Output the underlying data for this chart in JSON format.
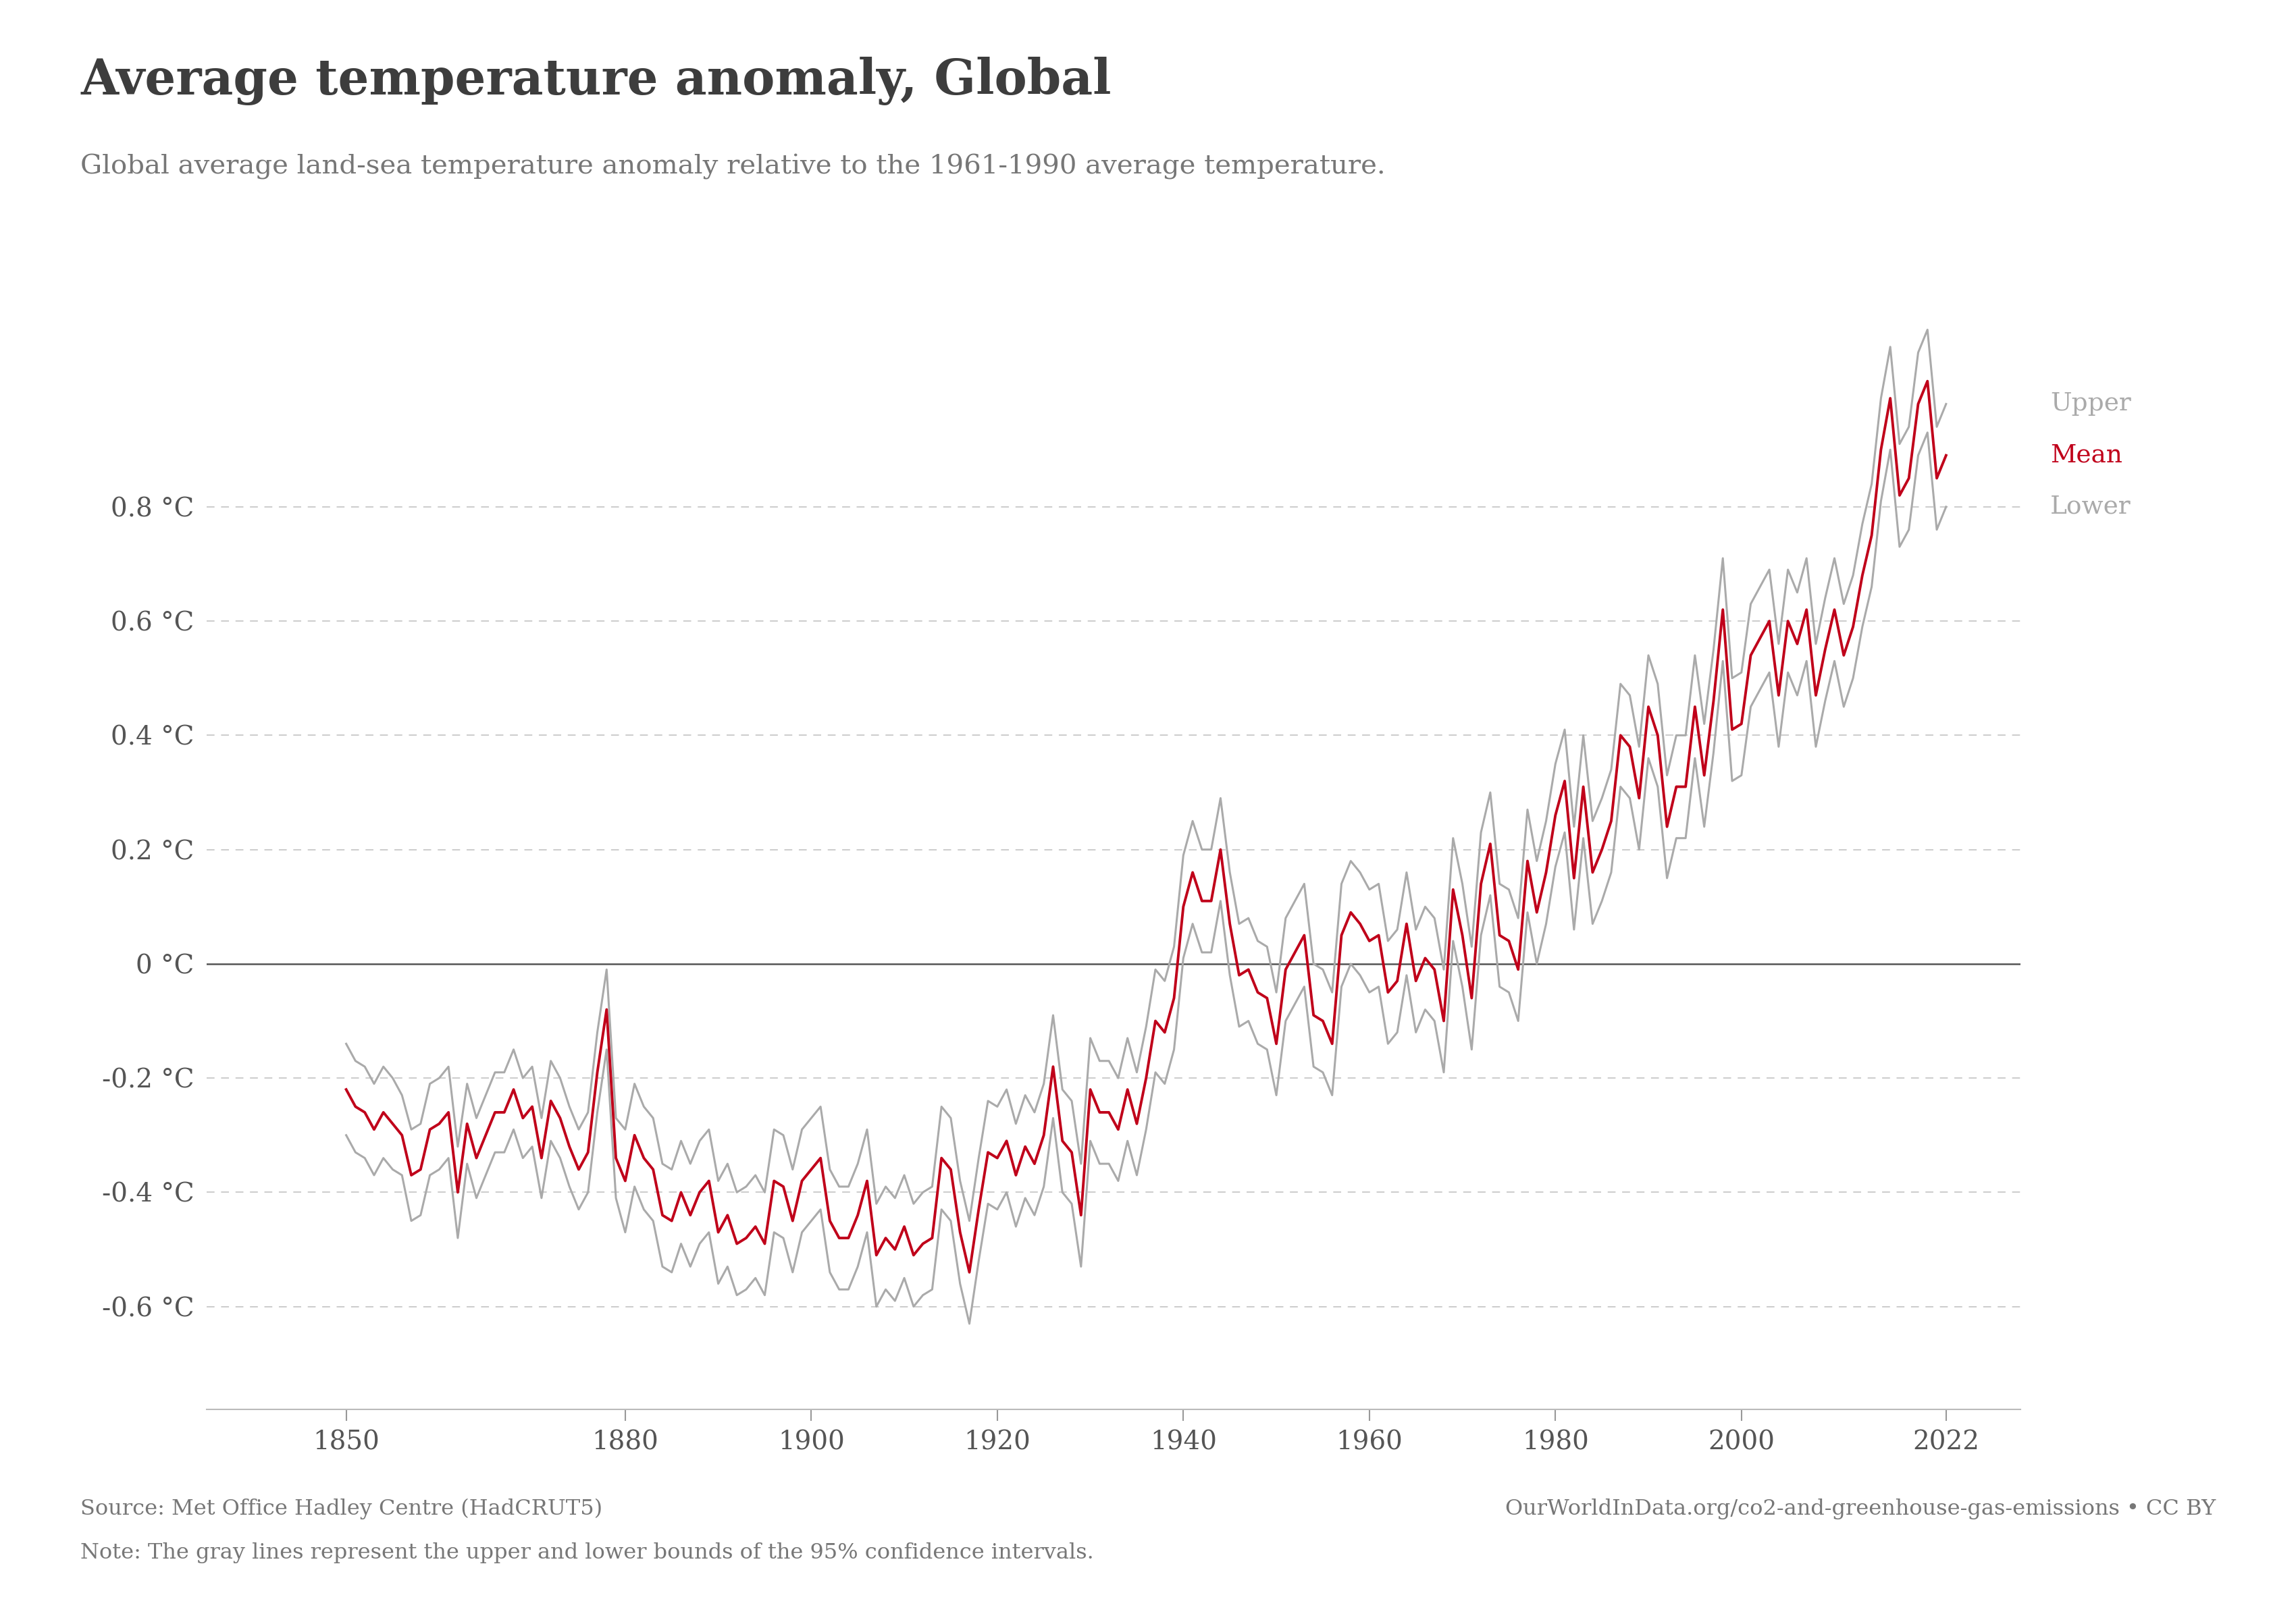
{
  "title": "Average temperature anomaly, Global",
  "subtitle": "Global average land-sea temperature anomaly relative to the 1961-1990 average temperature.",
  "source_left": "Source: Met Office Hadley Centre (HadCRUT5)",
  "source_right": "OurWorldInData.org/co2-and-greenhouse-gas-emissions • CC BY",
  "note": "Note: The gray lines represent the upper and lower bounds of the 95% confidence intervals.",
  "ylabel_ticks": [
    "-0.6 °C",
    "-0.4 °C",
    "-0.2 °C",
    "0 °C",
    "0.2 °C",
    "0.4 °C",
    "0.6 °C",
    "0.8 °C"
  ],
  "ytick_values": [
    -0.6,
    -0.4,
    -0.2,
    0.0,
    0.2,
    0.4,
    0.6,
    0.8
  ],
  "xtick_values": [
    1850,
    1880,
    1900,
    1920,
    1940,
    1960,
    1980,
    2000,
    2022
  ],
  "ylim": [
    -0.78,
    1.12
  ],
  "xlim": [
    1835,
    2030
  ],
  "mean_color": "#c0001a",
  "ci_color": "#aaaaaa",
  "zero_line_color": "#555555",
  "grid_color": "#cccccc",
  "background_color": "#ffffff",
  "title_color": "#3d3d3d",
  "subtitle_color": "#777777",
  "owid_box_color": "#1a2e54",
  "owid_bar_color": "#c0001a",
  "years": [
    1850,
    1851,
    1852,
    1853,
    1854,
    1855,
    1856,
    1857,
    1858,
    1859,
    1860,
    1861,
    1862,
    1863,
    1864,
    1865,
    1866,
    1867,
    1868,
    1869,
    1870,
    1871,
    1872,
    1873,
    1874,
    1875,
    1876,
    1877,
    1878,
    1879,
    1880,
    1881,
    1882,
    1883,
    1884,
    1885,
    1886,
    1887,
    1888,
    1889,
    1890,
    1891,
    1892,
    1893,
    1894,
    1895,
    1896,
    1897,
    1898,
    1899,
    1900,
    1901,
    1902,
    1903,
    1904,
    1905,
    1906,
    1907,
    1908,
    1909,
    1910,
    1911,
    1912,
    1913,
    1914,
    1915,
    1916,
    1917,
    1918,
    1919,
    1920,
    1921,
    1922,
    1923,
    1924,
    1925,
    1926,
    1927,
    1928,
    1929,
    1930,
    1931,
    1932,
    1933,
    1934,
    1935,
    1936,
    1937,
    1938,
    1939,
    1940,
    1941,
    1942,
    1943,
    1944,
    1945,
    1946,
    1947,
    1948,
    1949,
    1950,
    1951,
    1952,
    1953,
    1954,
    1955,
    1956,
    1957,
    1958,
    1959,
    1960,
    1961,
    1962,
    1963,
    1964,
    1965,
    1966,
    1967,
    1968,
    1969,
    1970,
    1971,
    1972,
    1973,
    1974,
    1975,
    1976,
    1977,
    1978,
    1979,
    1980,
    1981,
    1982,
    1983,
    1984,
    1985,
    1986,
    1987,
    1988,
    1989,
    1990,
    1991,
    1992,
    1993,
    1994,
    1995,
    1996,
    1997,
    1998,
    1999,
    2000,
    2001,
    2002,
    2003,
    2004,
    2005,
    2006,
    2007,
    2008,
    2009,
    2010,
    2011,
    2012,
    2013,
    2014,
    2015,
    2016,
    2017,
    2018,
    2019,
    2020,
    2021,
    2022
  ],
  "mean": [
    -0.22,
    -0.25,
    -0.26,
    -0.29,
    -0.26,
    -0.28,
    -0.3,
    -0.37,
    -0.36,
    -0.29,
    -0.28,
    -0.26,
    -0.4,
    -0.28,
    -0.34,
    -0.3,
    -0.26,
    -0.26,
    -0.22,
    -0.27,
    -0.25,
    -0.34,
    -0.24,
    -0.27,
    -0.32,
    -0.36,
    -0.33,
    -0.19,
    -0.08,
    -0.34,
    -0.38,
    -0.3,
    -0.34,
    -0.36,
    -0.44,
    -0.45,
    -0.4,
    -0.44,
    -0.4,
    -0.38,
    -0.47,
    -0.44,
    -0.49,
    -0.48,
    -0.46,
    -0.49,
    -0.38,
    -0.39,
    -0.45,
    -0.38,
    -0.36,
    -0.34,
    -0.45,
    -0.48,
    -0.48,
    -0.44,
    -0.38,
    -0.51,
    -0.48,
    -0.5,
    -0.46,
    -0.51,
    -0.49,
    -0.48,
    -0.34,
    -0.36,
    -0.47,
    -0.54,
    -0.43,
    -0.33,
    -0.34,
    -0.31,
    -0.37,
    -0.32,
    -0.35,
    -0.3,
    -0.18,
    -0.31,
    -0.33,
    -0.44,
    -0.22,
    -0.26,
    -0.26,
    -0.29,
    -0.22,
    -0.28,
    -0.2,
    -0.1,
    -0.12,
    -0.06,
    0.1,
    0.16,
    0.11,
    0.11,
    0.2,
    0.07,
    -0.02,
    -0.01,
    -0.05,
    -0.06,
    -0.14,
    -0.01,
    0.02,
    0.05,
    -0.09,
    -0.1,
    -0.14,
    0.05,
    0.09,
    0.07,
    0.04,
    0.05,
    -0.05,
    -0.03,
    0.07,
    -0.03,
    0.01,
    -0.01,
    -0.1,
    0.13,
    0.05,
    -0.06,
    0.14,
    0.21,
    0.05,
    0.04,
    -0.01,
    0.18,
    0.09,
    0.16,
    0.26,
    0.32,
    0.15,
    0.31,
    0.16,
    0.2,
    0.25,
    0.4,
    0.38,
    0.29,
    0.45,
    0.4,
    0.24,
    0.31,
    0.31,
    0.45,
    0.33,
    0.46,
    0.62,
    0.41,
    0.42,
    0.54,
    0.57,
    0.6,
    0.47,
    0.6,
    0.56,
    0.62,
    0.47,
    0.55,
    0.62,
    0.54,
    0.59,
    0.68,
    0.75,
    0.9,
    0.99,
    0.82,
    0.85,
    0.98,
    1.02,
    0.85,
    0.89
  ],
  "upper": [
    -0.14,
    -0.17,
    -0.18,
    -0.21,
    -0.18,
    -0.2,
    -0.23,
    -0.29,
    -0.28,
    -0.21,
    -0.2,
    -0.18,
    -0.32,
    -0.21,
    -0.27,
    -0.23,
    -0.19,
    -0.19,
    -0.15,
    -0.2,
    -0.18,
    -0.27,
    -0.17,
    -0.2,
    -0.25,
    -0.29,
    -0.26,
    -0.12,
    -0.01,
    -0.27,
    -0.29,
    -0.21,
    -0.25,
    -0.27,
    -0.35,
    -0.36,
    -0.31,
    -0.35,
    -0.31,
    -0.29,
    -0.38,
    -0.35,
    -0.4,
    -0.39,
    -0.37,
    -0.4,
    -0.29,
    -0.3,
    -0.36,
    -0.29,
    -0.27,
    -0.25,
    -0.36,
    -0.39,
    -0.39,
    -0.35,
    -0.29,
    -0.42,
    -0.39,
    -0.41,
    -0.37,
    -0.42,
    -0.4,
    -0.39,
    -0.25,
    -0.27,
    -0.38,
    -0.45,
    -0.34,
    -0.24,
    -0.25,
    -0.22,
    -0.28,
    -0.23,
    -0.26,
    -0.21,
    -0.09,
    -0.22,
    -0.24,
    -0.35,
    -0.13,
    -0.17,
    -0.17,
    -0.2,
    -0.13,
    -0.19,
    -0.11,
    -0.01,
    -0.03,
    0.03,
    0.19,
    0.25,
    0.2,
    0.2,
    0.29,
    0.16,
    0.07,
    0.08,
    0.04,
    0.03,
    -0.05,
    0.08,
    0.11,
    0.14,
    0.0,
    -0.01,
    -0.05,
    0.14,
    0.18,
    0.16,
    0.13,
    0.14,
    0.04,
    0.06,
    0.16,
    0.06,
    0.1,
    0.08,
    -0.01,
    0.22,
    0.14,
    0.03,
    0.23,
    0.3,
    0.14,
    0.13,
    0.08,
    0.27,
    0.18,
    0.25,
    0.35,
    0.41,
    0.24,
    0.4,
    0.25,
    0.29,
    0.34,
    0.49,
    0.47,
    0.38,
    0.54,
    0.49,
    0.33,
    0.4,
    0.4,
    0.54,
    0.42,
    0.55,
    0.71,
    0.5,
    0.51,
    0.63,
    0.66,
    0.69,
    0.56,
    0.69,
    0.65,
    0.71,
    0.56,
    0.64,
    0.71,
    0.63,
    0.68,
    0.77,
    0.84,
    0.99,
    1.08,
    0.91,
    0.94,
    1.07,
    1.11,
    0.94,
    0.98
  ],
  "lower": [
    -0.3,
    -0.33,
    -0.34,
    -0.37,
    -0.34,
    -0.36,
    -0.37,
    -0.45,
    -0.44,
    -0.37,
    -0.36,
    -0.34,
    -0.48,
    -0.35,
    -0.41,
    -0.37,
    -0.33,
    -0.33,
    -0.29,
    -0.34,
    -0.32,
    -0.41,
    -0.31,
    -0.34,
    -0.39,
    -0.43,
    -0.4,
    -0.26,
    -0.15,
    -0.41,
    -0.47,
    -0.39,
    -0.43,
    -0.45,
    -0.53,
    -0.54,
    -0.49,
    -0.53,
    -0.49,
    -0.47,
    -0.56,
    -0.53,
    -0.58,
    -0.57,
    -0.55,
    -0.58,
    -0.47,
    -0.48,
    -0.54,
    -0.47,
    -0.45,
    -0.43,
    -0.54,
    -0.57,
    -0.57,
    -0.53,
    -0.47,
    -0.6,
    -0.57,
    -0.59,
    -0.55,
    -0.6,
    -0.58,
    -0.57,
    -0.43,
    -0.45,
    -0.56,
    -0.63,
    -0.52,
    -0.42,
    -0.43,
    -0.4,
    -0.46,
    -0.41,
    -0.44,
    -0.39,
    -0.27,
    -0.4,
    -0.42,
    -0.53,
    -0.31,
    -0.35,
    -0.35,
    -0.38,
    -0.31,
    -0.37,
    -0.29,
    -0.19,
    -0.21,
    -0.15,
    0.01,
    0.07,
    0.02,
    0.02,
    0.11,
    -0.02,
    -0.11,
    -0.1,
    -0.14,
    -0.15,
    -0.23,
    -0.1,
    -0.07,
    -0.04,
    -0.18,
    -0.19,
    -0.23,
    -0.04,
    0.0,
    -0.02,
    -0.05,
    -0.04,
    -0.14,
    -0.12,
    -0.02,
    -0.12,
    -0.08,
    -0.1,
    -0.19,
    0.04,
    -0.04,
    -0.15,
    0.05,
    0.12,
    -0.04,
    -0.05,
    -0.1,
    0.09,
    0.0,
    0.07,
    0.17,
    0.23,
    0.06,
    0.22,
    0.07,
    0.11,
    0.16,
    0.31,
    0.29,
    0.2,
    0.36,
    0.31,
    0.15,
    0.22,
    0.22,
    0.36,
    0.24,
    0.37,
    0.53,
    0.32,
    0.33,
    0.45,
    0.48,
    0.51,
    0.38,
    0.51,
    0.47,
    0.53,
    0.38,
    0.46,
    0.53,
    0.45,
    0.5,
    0.59,
    0.66,
    0.81,
    0.9,
    0.73,
    0.76,
    0.89,
    0.93,
    0.76,
    0.8
  ]
}
